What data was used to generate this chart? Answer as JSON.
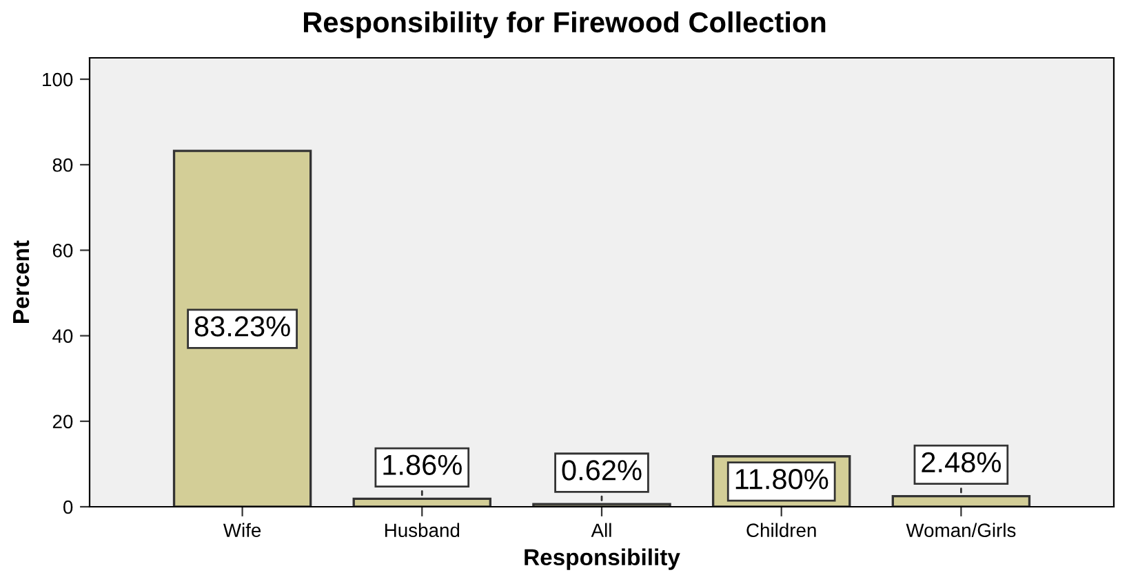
{
  "chart_data": {
    "type": "bar",
    "title": "Responsibility for Firewood Collection",
    "xlabel": "Responsibility",
    "ylabel": "Percent",
    "categories": [
      "Wife",
      "Husband",
      "All",
      "Children",
      "Woman/Girls"
    ],
    "values": [
      83.23,
      1.86,
      0.62,
      11.8,
      2.48
    ],
    "value_labels": [
      "83.23%",
      "1.86%",
      "0.62%",
      "11.80%",
      "2.48%"
    ],
    "color": "#d3ce97",
    "ylim": [
      0,
      105
    ],
    "yticks": [
      0,
      20,
      40,
      60,
      80,
      100
    ],
    "grid": false,
    "legend": false
  }
}
